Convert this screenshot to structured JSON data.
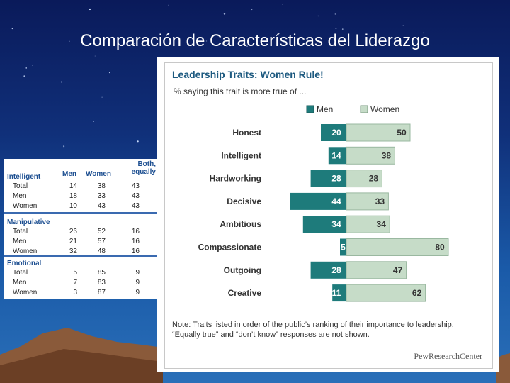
{
  "slide_title": "Comparación de Características del Liderazgo",
  "left_table": {
    "headers": [
      "Men",
      "Women",
      "Both, equally"
    ],
    "sections": [
      {
        "name": "Intelligent",
        "rows": [
          {
            "label": "Total",
            "men": "14",
            "women": "38",
            "both": "43"
          },
          {
            "label": "Men",
            "men": "18",
            "women": "33",
            "both": "43"
          },
          {
            "label": "Women",
            "men": "10",
            "women": "43",
            "both": "43"
          }
        ]
      },
      {
        "name": "Manipulative",
        "rows": [
          {
            "label": "Total",
            "men": "26",
            "women": "52",
            "both": "16"
          },
          {
            "label": "Men",
            "men": "21",
            "women": "57",
            "both": "16"
          },
          {
            "label": "Women",
            "men": "32",
            "women": "48",
            "both": "16"
          }
        ]
      },
      {
        "name": "Emotional",
        "rows": [
          {
            "label": "Total",
            "men": "5",
            "women": "85",
            "both": "9"
          },
          {
            "label": "Men",
            "men": "7",
            "women": "83",
            "both": "9"
          },
          {
            "label": "Women",
            "men": "3",
            "women": "87",
            "both": "9"
          }
        ]
      }
    ]
  },
  "chart_panel": {
    "note": "Note: Traits listed in order of the public’s ranking of their importance to leadership. “Equally true” and “don’t know” responses are not shown.",
    "brand": "PewResearchCenter"
  },
  "chart_data": {
    "type": "bar",
    "orientation": "diverging-horizontal",
    "title": "Leadership Traits: Women Rule!",
    "subtitle": "% saying this trait is more true of ...",
    "categories": [
      "Honest",
      "Intelligent",
      "Hardworking",
      "Decisive",
      "Ambitious",
      "Compassionate",
      "Outgoing",
      "Creative"
    ],
    "series": [
      {
        "name": "Men",
        "values": [
          20,
          14,
          28,
          44,
          34,
          5,
          28,
          11
        ],
        "color": "#1e7b7b"
      },
      {
        "name": "Women",
        "values": [
          50,
          38,
          28,
          33,
          34,
          80,
          47,
          62
        ],
        "color": "#c6dcc8"
      }
    ],
    "legend": "top-right",
    "grid": false
  }
}
